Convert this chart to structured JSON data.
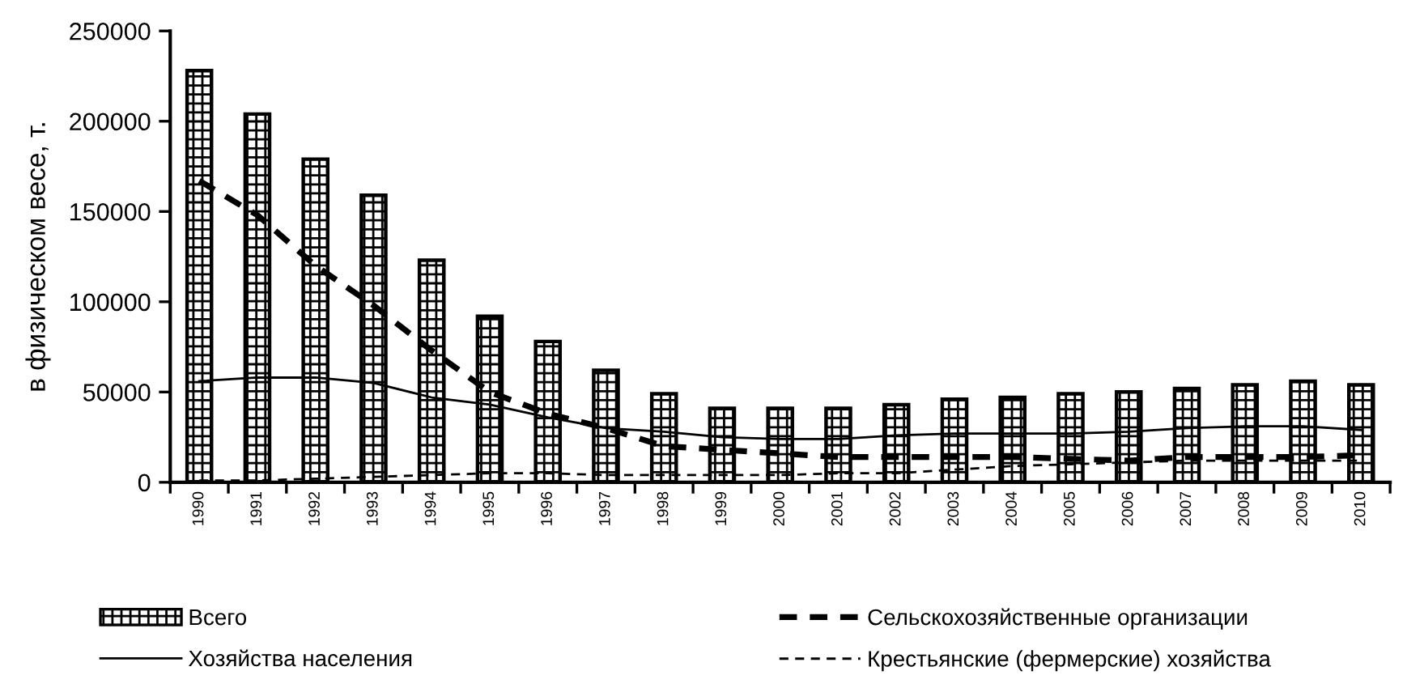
{
  "chart_data": {
    "type": "bar",
    "ylabel": "в физическом весе, т.",
    "categories": [
      "1990",
      "1991",
      "1992",
      "1993",
      "1994",
      "1995",
      "1996",
      "1997",
      "1998",
      "1999",
      "2000",
      "2001",
      "2002",
      "2003",
      "2004",
      "2005",
      "2006",
      "2007",
      "2008",
      "2009",
      "2010"
    ],
    "series": [
      {
        "name": "Всего",
        "color": "#000000",
        "values": [
          228000,
          204000,
          179000,
          159000,
          123000,
          92000,
          78000,
          62000,
          49000,
          41000,
          41000,
          41000,
          43000,
          46000,
          47000,
          49000,
          50000,
          52000,
          54000,
          56000,
          54000
        ]
      },
      {
        "name": "Сельскохозяйственные организации",
        "type": "line",
        "color": "#000000",
        "line_style": "dashed",
        "values": [
          167000,
          148000,
          120000,
          98000,
          73000,
          50000,
          38000,
          30000,
          20000,
          18000,
          16000,
          14000,
          14000,
          14000,
          14000,
          13000,
          12000,
          14000,
          14000,
          14000,
          15000
        ]
      },
      {
        "name": "Хозяйства населения",
        "type": "line",
        "color": "#000000",
        "line_style": "solid",
        "values": [
          56000,
          58000,
          58000,
          55000,
          47000,
          43000,
          36000,
          30000,
          28000,
          25000,
          24000,
          24000,
          26000,
          27000,
          27000,
          27000,
          28000,
          30000,
          31000,
          31000,
          29000
        ]
      },
      {
        "name": "Крестьянские (фермерские) хозяйства",
        "type": "line",
        "color": "#000000",
        "line_style": "dashed",
        "values": [
          1000,
          1000,
          2000,
          3000,
          4000,
          5000,
          5000,
          4000,
          4000,
          4000,
          4000,
          5000,
          5000,
          7000,
          9000,
          10000,
          11000,
          12000,
          12000,
          12000,
          12000
        ]
      }
    ],
    "ylim": [
      0,
      250000
    ],
    "yticks": [
      0,
      50000,
      100000,
      150000,
      200000,
      250000
    ],
    "grid": false,
    "legend": "bottom",
    "marker": "none"
  }
}
